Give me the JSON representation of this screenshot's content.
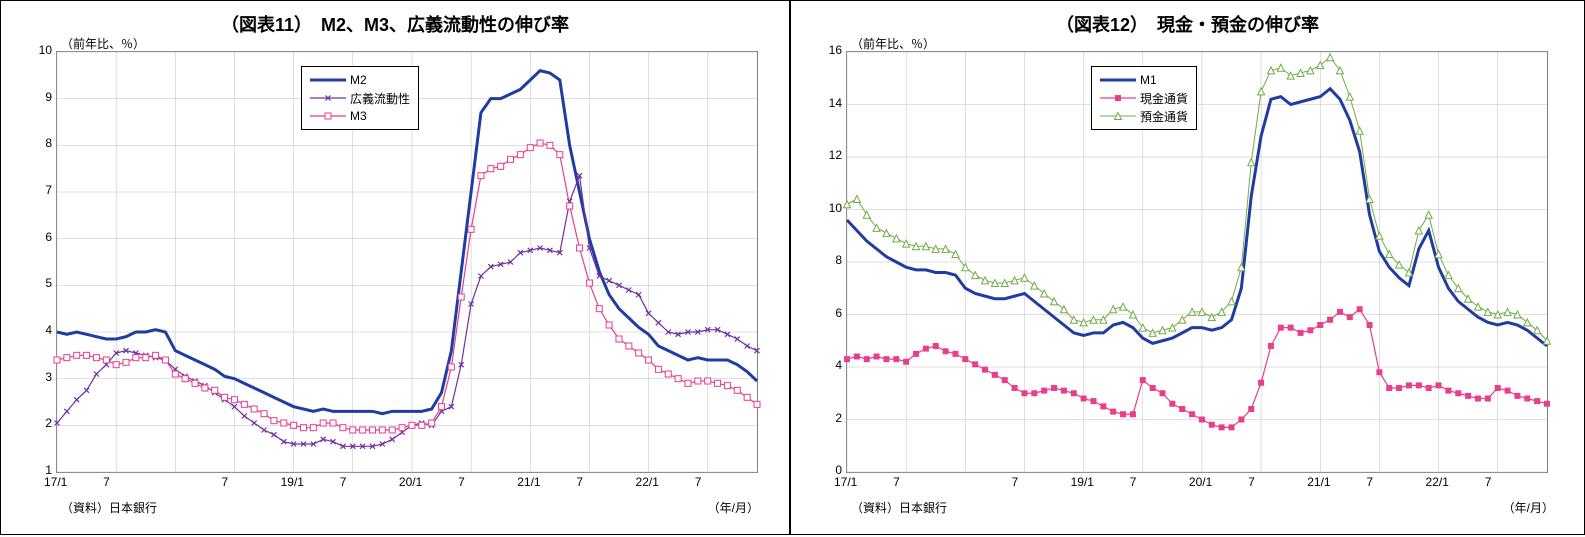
{
  "chart11": {
    "title": "（図表11）　M2、M3、広義流動性の伸び率",
    "title_fontsize": 18,
    "y_axis_label": "（前年比、％）",
    "x_axis_label": "（年/月）",
    "source": "（資料）日本銀行",
    "ylim": [
      1,
      10
    ],
    "ytick_step": 1,
    "x_categories": [
      "17/1",
      "",
      "",
      "",
      "",
      "",
      "7",
      "",
      "",
      "",
      "",
      "",
      "",
      "",
      "",
      "",
      "",
      "",
      "7",
      "",
      "",
      "",
      "",
      "",
      "19/1",
      "",
      "",
      "",
      "",
      "",
      "7",
      "",
      "",
      "",
      "",
      "",
      "20/1",
      "",
      "",
      "",
      "",
      "",
      "7",
      "",
      "",
      "",
      "",
      "",
      "21/1",
      "",
      "",
      "",
      "",
      "",
      "7",
      "",
      "",
      "",
      "",
      "",
      "22/1",
      "",
      "",
      "",
      "",
      "",
      "7",
      "",
      "",
      "",
      "",
      ""
    ],
    "x_ticks_shown": [
      "17/1",
      "7",
      "",
      "7",
      "19/1",
      "7",
      "20/1",
      "7",
      "21/1",
      "7",
      "22/1",
      "7"
    ],
    "background_color": "#ffffff",
    "grid_color": "#c0c0c0",
    "series": {
      "m2": {
        "label": "M2",
        "color": "#1f3da0",
        "line_width": 3,
        "marker": "none",
        "values": [
          4.0,
          3.95,
          4.0,
          3.95,
          3.9,
          3.85,
          3.85,
          3.9,
          4.0,
          4.0,
          4.05,
          4.0,
          3.6,
          3.5,
          3.4,
          3.3,
          3.2,
          3.05,
          3.0,
          2.9,
          2.8,
          2.7,
          2.6,
          2.5,
          2.4,
          2.35,
          2.3,
          2.35,
          2.3,
          2.3,
          2.3,
          2.3,
          2.3,
          2.25,
          2.3,
          2.3,
          2.3,
          2.3,
          2.35,
          2.7,
          3.6,
          5.3,
          7.0,
          8.7,
          9.0,
          9.0,
          9.1,
          9.2,
          9.4,
          9.6,
          9.55,
          9.4,
          8.0,
          7.0,
          6.0,
          5.3,
          4.8,
          4.5,
          4.3,
          4.1,
          3.95,
          3.7,
          3.6,
          3.5,
          3.4,
          3.45,
          3.4,
          3.4,
          3.4,
          3.3,
          3.15,
          2.95
        ]
      },
      "kogi": {
        "label": "広義流動性",
        "color": "#7030a0",
        "line_width": 1.2,
        "marker": "x",
        "marker_size": 5,
        "values": [
          2.05,
          2.3,
          2.55,
          2.75,
          3.1,
          3.3,
          3.55,
          3.6,
          3.55,
          3.5,
          3.45,
          3.4,
          3.2,
          3.05,
          2.95,
          2.85,
          2.7,
          2.55,
          2.4,
          2.2,
          2.05,
          1.9,
          1.8,
          1.65,
          1.6,
          1.6,
          1.6,
          1.7,
          1.65,
          1.55,
          1.55,
          1.55,
          1.55,
          1.6,
          1.7,
          1.85,
          2.0,
          2.05,
          2.0,
          2.3,
          2.4,
          3.3,
          4.6,
          5.2,
          5.4,
          5.45,
          5.5,
          5.7,
          5.75,
          5.8,
          5.75,
          5.7,
          6.8,
          7.35,
          5.8,
          5.2,
          5.1,
          5.0,
          4.9,
          4.8,
          4.4,
          4.2,
          4.0,
          3.95,
          4.0,
          4.0,
          4.05,
          4.05,
          3.95,
          3.85,
          3.7,
          3.6
        ]
      },
      "m3": {
        "label": "M3",
        "color": "#e83e8c",
        "line_width": 1.2,
        "marker": "square_open",
        "marker_size": 6,
        "values": [
          3.4,
          3.45,
          3.5,
          3.5,
          3.45,
          3.4,
          3.3,
          3.35,
          3.45,
          3.45,
          3.5,
          3.4,
          3.1,
          3.0,
          2.9,
          2.8,
          2.75,
          2.6,
          2.55,
          2.45,
          2.35,
          2.25,
          2.1,
          2.05,
          2.0,
          1.95,
          1.95,
          2.05,
          2.05,
          1.95,
          1.9,
          1.9,
          1.9,
          1.9,
          1.9,
          1.95,
          2.0,
          2.0,
          2.05,
          2.4,
          3.25,
          4.75,
          6.2,
          7.35,
          7.5,
          7.55,
          7.7,
          7.8,
          7.95,
          8.05,
          8.0,
          7.8,
          6.7,
          5.8,
          5.05,
          4.5,
          4.15,
          3.85,
          3.7,
          3.55,
          3.4,
          3.2,
          3.1,
          3.0,
          2.9,
          2.95,
          2.95,
          2.9,
          2.85,
          2.75,
          2.6,
          2.45
        ]
      }
    }
  },
  "chart12": {
    "title": "（図表12）　現金・預金の伸び率",
    "title_fontsize": 18,
    "y_axis_label": "（前年比、％）",
    "x_axis_label": "（年/月）",
    "source": "（資料）日本銀行",
    "ylim": [
      0,
      16
    ],
    "ytick_step": 2,
    "x_categories": [
      "17/1",
      "",
      "",
      "",
      "",
      "",
      "7",
      "",
      "",
      "",
      "",
      "",
      "",
      "",
      "",
      "",
      "",
      "",
      "7",
      "",
      "",
      "",
      "",
      "",
      "19/1",
      "",
      "",
      "",
      "",
      "",
      "7",
      "",
      "",
      "",
      "",
      "",
      "20/1",
      "",
      "",
      "",
      "",
      "",
      "7",
      "",
      "",
      "",
      "",
      "",
      "21/1",
      "",
      "",
      "",
      "",
      "",
      "7",
      "",
      "",
      "",
      "",
      "",
      "22/1",
      "",
      "",
      "",
      "",
      "",
      "7",
      "",
      "",
      "",
      "",
      ""
    ],
    "x_ticks_shown": [
      "17/1",
      "7",
      "",
      "7",
      "19/1",
      "7",
      "20/1",
      "7",
      "21/1",
      "7",
      "22/1",
      "7"
    ],
    "background_color": "#ffffff",
    "grid_color": "#c0c0c0",
    "series": {
      "m1": {
        "label": "M1",
        "color": "#1f3da0",
        "line_width": 3,
        "marker": "none",
        "values": [
          9.6,
          9.2,
          8.8,
          8.5,
          8.2,
          8.0,
          7.8,
          7.7,
          7.7,
          7.6,
          7.6,
          7.5,
          7.0,
          6.8,
          6.7,
          6.6,
          6.6,
          6.7,
          6.8,
          6.5,
          6.2,
          5.9,
          5.6,
          5.3,
          5.2,
          5.3,
          5.3,
          5.6,
          5.7,
          5.5,
          5.1,
          4.9,
          5.0,
          5.1,
          5.3,
          5.5,
          5.5,
          5.4,
          5.5,
          5.8,
          7.0,
          10.5,
          12.8,
          14.2,
          14.3,
          14.0,
          14.1,
          14.2,
          14.3,
          14.6,
          14.2,
          13.4,
          12.2,
          9.8,
          8.4,
          7.8,
          7.4,
          7.1,
          8.5,
          9.2,
          7.8,
          7.0,
          6.5,
          6.2,
          5.9,
          5.7,
          5.6,
          5.7,
          5.6,
          5.4,
          5.1,
          4.8
        ]
      },
      "genkin": {
        "label": "現金通貨",
        "color": "#e83e8c",
        "line_width": 1.2,
        "marker": "square",
        "marker_size": 5,
        "values": [
          4.3,
          4.4,
          4.3,
          4.4,
          4.3,
          4.3,
          4.2,
          4.5,
          4.7,
          4.8,
          4.6,
          4.5,
          4.3,
          4.1,
          3.9,
          3.7,
          3.5,
          3.2,
          3.0,
          3.0,
          3.1,
          3.2,
          3.1,
          3.0,
          2.8,
          2.7,
          2.5,
          2.3,
          2.2,
          2.2,
          3.5,
          3.2,
          3.0,
          2.6,
          2.4,
          2.2,
          2.0,
          1.8,
          1.7,
          1.7,
          2.0,
          2.4,
          3.4,
          4.8,
          5.5,
          5.5,
          5.3,
          5.4,
          5.6,
          5.8,
          6.1,
          5.9,
          6.2,
          5.6,
          3.8,
          3.2,
          3.2,
          3.3,
          3.3,
          3.2,
          3.3,
          3.1,
          3.0,
          2.9,
          2.8,
          2.8,
          3.2,
          3.1,
          2.9,
          2.8,
          2.7,
          2.6
        ]
      },
      "yokin": {
        "label": "預金通貨",
        "color": "#70ad47",
        "line_width": 1,
        "marker": "triangle_open",
        "marker_size": 7,
        "values": [
          10.2,
          10.4,
          9.8,
          9.3,
          9.1,
          8.9,
          8.7,
          8.6,
          8.6,
          8.5,
          8.5,
          8.3,
          7.8,
          7.5,
          7.3,
          7.2,
          7.2,
          7.3,
          7.4,
          7.1,
          6.8,
          6.5,
          6.2,
          5.8,
          5.7,
          5.8,
          5.8,
          6.2,
          6.3,
          6.0,
          5.5,
          5.3,
          5.4,
          5.5,
          5.8,
          6.1,
          6.1,
          5.9,
          6.1,
          6.5,
          7.8,
          11.8,
          14.5,
          15.3,
          15.4,
          15.1,
          15.2,
          15.3,
          15.5,
          15.8,
          15.3,
          14.3,
          13.0,
          10.4,
          9.0,
          8.3,
          7.9,
          7.6,
          9.2,
          9.8,
          8.3,
          7.5,
          7.0,
          6.6,
          6.3,
          6.1,
          6.0,
          6.1,
          6.0,
          5.7,
          5.4,
          5.0
        ]
      }
    }
  }
}
